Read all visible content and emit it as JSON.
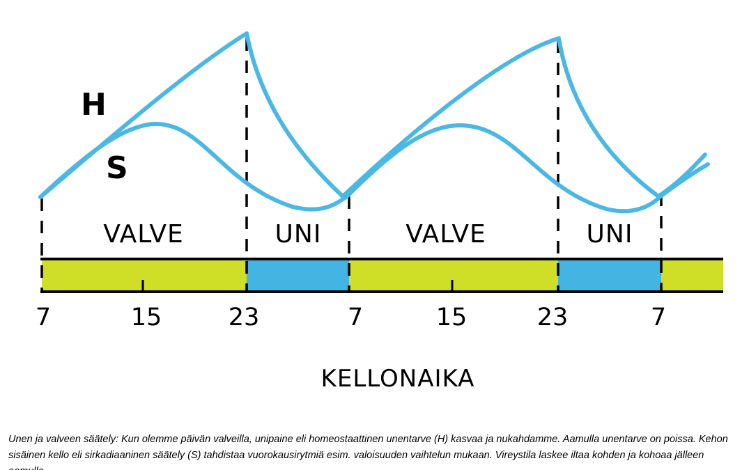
{
  "diagram": {
    "curves": {
      "h": {
        "label": "H",
        "color": "#4bb8e4"
      },
      "s": {
        "label": "S",
        "color": "#4bb8e4"
      }
    },
    "phases": [
      {
        "label": "VALVE",
        "state": "wake",
        "color": "#cfdf27"
      },
      {
        "label": "UNI",
        "state": "sleep",
        "color": "#44b4e2"
      },
      {
        "label": "VALVE",
        "state": "wake",
        "color": "#cfdf27"
      },
      {
        "label": "UNI",
        "state": "sleep",
        "color": "#44b4e2"
      }
    ],
    "time_ticks": [
      "7",
      "15",
      "23",
      "7",
      "15",
      "23",
      "7"
    ],
    "axis_title": "KELLONAIKA"
  },
  "caption": "Unen ja valveen säätely: Kun olemme päivän valveilla, unipaine eli homeostaattinen unentarve (H) kasvaa ja nukahdamme. Aamulla unentarve on poissa. Kehon sisäinen kello eli sirkadiaaninen säätely (S) tahdistaa vuorokausirytmiä esim. valoisuuden vaihtelun mukaan. Vireystila laskee iltaa kohden ja kohoaa jälleen aamulla."
}
